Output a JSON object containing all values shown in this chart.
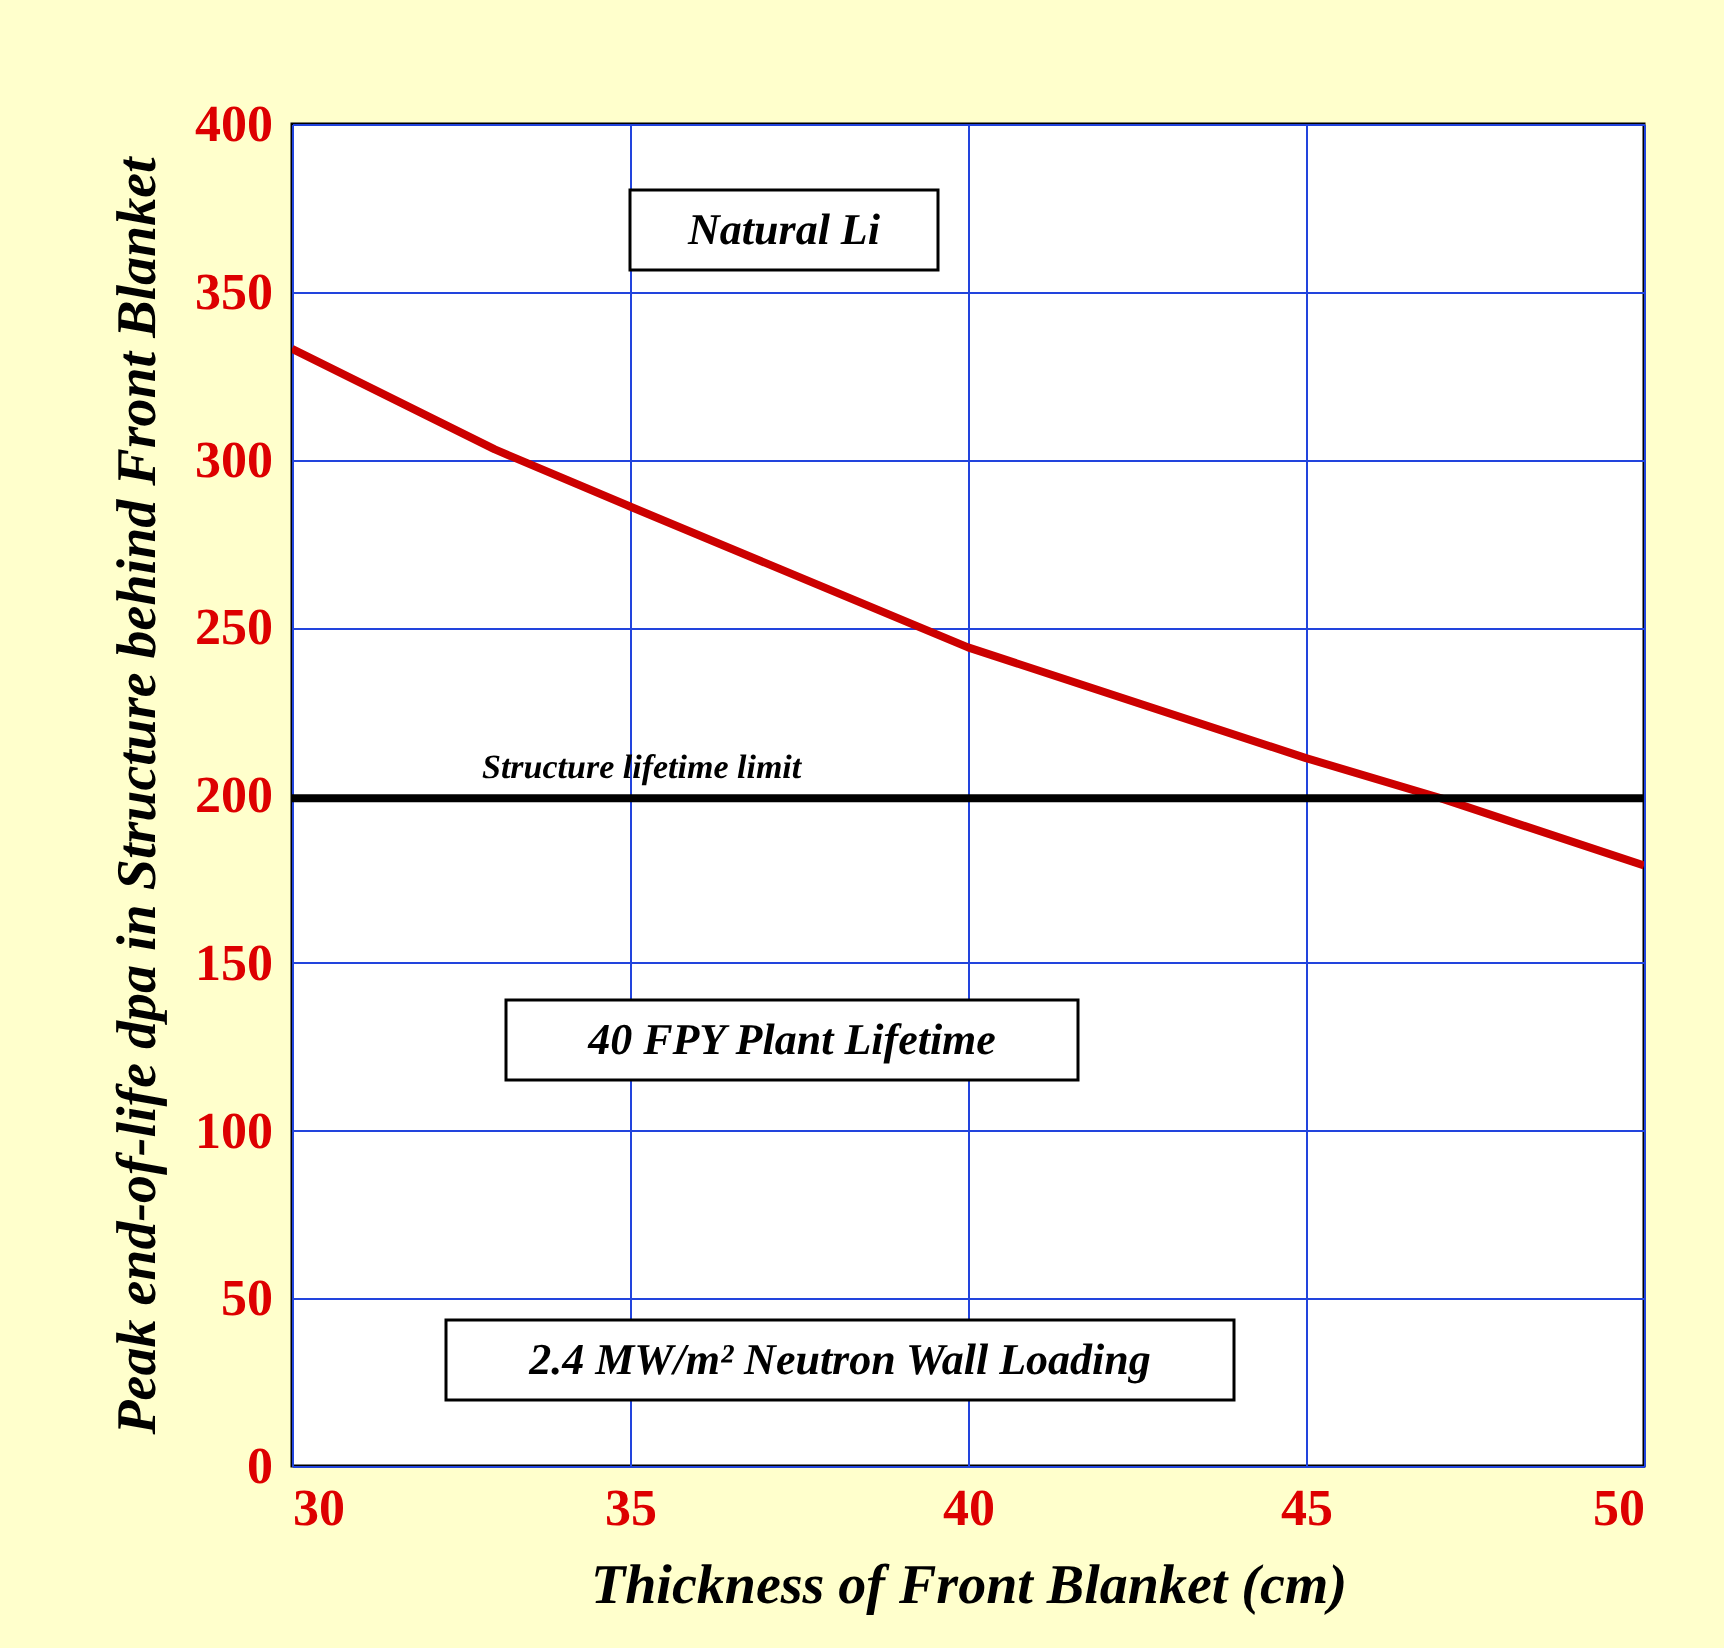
{
  "chart_data": {
    "type": "line",
    "xlabel": "Thickness of Front Blanket (cm)",
    "ylabel": "Peak end-of-life dpa in Structure behind Front Blanket",
    "x": [
      30,
      33,
      35,
      40,
      45,
      47,
      50
    ],
    "series": [
      {
        "color": "#cc0000",
        "values": [
          333,
          303,
          286,
          244,
          211,
          199,
          179
        ]
      }
    ],
    "xlim": [
      30,
      50
    ],
    "ylim": [
      0,
      400
    ],
    "xticks": [
      30,
      35,
      40,
      45,
      50
    ],
    "yticks": [
      0,
      50,
      100,
      150,
      200,
      250,
      300,
      350,
      400
    ],
    "grid": true,
    "ref_lines": [
      {
        "axis": "y",
        "value": 199,
        "label": "Structure lifetime limit",
        "color": "#000000"
      }
    ],
    "annotations": [
      "Natural Li",
      "40 FPY Plant Lifetime",
      "2.4 MW/m² Neutron Wall Loading"
    ]
  }
}
